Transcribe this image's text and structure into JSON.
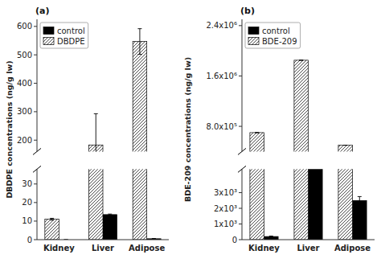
{
  "chart_data": [
    {
      "type": "bar",
      "title": "(a)",
      "y_label": "DBDPE concentrations (ng/g lw)",
      "categories": [
        "Kidney",
        "Liver",
        "Adipose"
      ],
      "series": [
        {
          "name": "control",
          "color": "#000000",
          "values": [
            0.0,
            13.5,
            0.5
          ],
          "errors": [
            0.0,
            0.3,
            0.1
          ]
        },
        {
          "name": "DBDPE",
          "color": "#ffffff",
          "values": [
            11.0,
            183.0,
            547.0
          ],
          "errors": [
            0.5,
            110.0,
            45.0
          ]
        }
      ],
      "ylim": [
        [
          0,
          38
        ],
        [
          160,
          625
        ]
      ],
      "yticks": [
        [
          0,
          10,
          20,
          30
        ],
        [
          200,
          300,
          400,
          500,
          600
        ]
      ],
      "legend": "upper left"
    },
    {
      "type": "bar",
      "title": "(b)",
      "y_label": "BDE-209 concentrations (ng/g lw)",
      "categories": [
        "Kidney",
        "Liver",
        "Adipose"
      ],
      "series": [
        {
          "name": "control",
          "color": "#000000",
          "values": [
            200,
            250000,
            2500
          ],
          "errors": [
            30,
            0,
            250
          ]
        },
        {
          "name": "BDE-209",
          "color": "#ffffff",
          "values": [
            700000,
            1850000,
            500000
          ],
          "errors": [
            0,
            0,
            0
          ]
        }
      ],
      "ylim": [
        [
          0,
          4500
        ],
        [
          400000,
          2500000
        ]
      ],
      "yticks": [
        [
          0,
          {
            "value": 1000,
            "label": "1x10³"
          },
          {
            "value": 2000,
            "label": "2x10³"
          },
          {
            "value": 3000,
            "label": "3x10³"
          }
        ],
        [
          {
            "value": 800000,
            "label": "8.0x10⁵"
          },
          {
            "value": 1600000,
            "label": "1.6x10⁶"
          },
          {
            "value": 2400000,
            "label": "2.4x10⁶"
          }
        ]
      ],
      "legend": "upper left"
    }
  ]
}
